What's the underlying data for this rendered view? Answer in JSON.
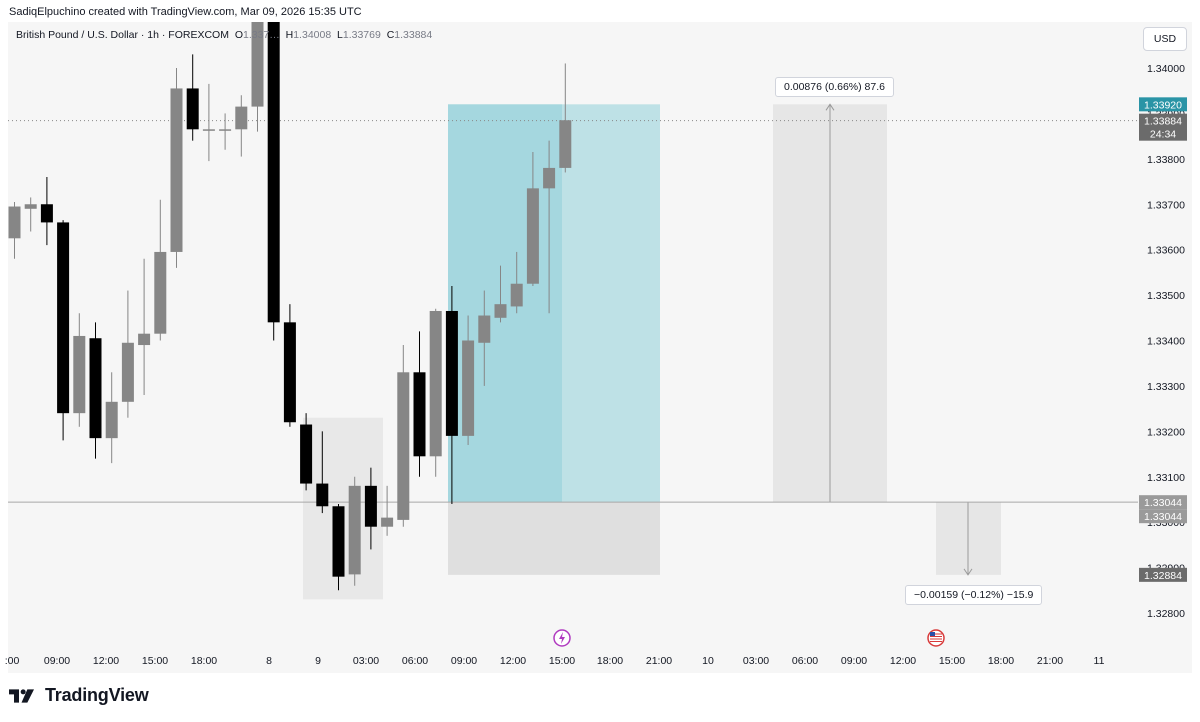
{
  "header": {
    "credit": "SadiqElpuchino created with TradingView.com, Mar 09, 2026 15:35 UTC"
  },
  "legend": {
    "symbol": "British Pound / U.S. Dollar · 1h · FOREXCOM",
    "open_label": "O",
    "open": "1.337…",
    "high_label": "H",
    "high": "1.34008",
    "low_label": "L",
    "low": "1.33769",
    "close_label": "C",
    "close": "1.33884"
  },
  "currency_button": "USD",
  "footer": {
    "logo_text": "TradingView"
  },
  "colors": {
    "bull": "#868686",
    "bear": "#000000",
    "target_zone": "#8fd0d8",
    "stop_zone": "#dadada",
    "last_price_badge": "#2a94a6",
    "grey_badge": "#6b6b6b"
  },
  "chart_data": {
    "type": "candlestick",
    "instrument": "British Pound / U.S. Dollar",
    "timeframe": "1h",
    "yticks": [
      "1.34000",
      "1.33900",
      "1.33800",
      "1.33700",
      "1.33600",
      "1.33500",
      "1.33400",
      "1.33300",
      "1.33200",
      "1.33100",
      "1.33000",
      "1.32900",
      "1.32800"
    ],
    "xticks": [
      ":00",
      "09:00",
      "12:00",
      "15:00",
      "18:00",
      "8",
      "9",
      "03:00",
      "06:00",
      "09:00",
      "12:00",
      "15:00",
      "18:00",
      "21:00",
      "10",
      "03:00",
      "06:00",
      "09:00",
      "12:00",
      "15:00",
      "18:00",
      "21:00",
      "11"
    ],
    "candles": [
      {
        "o": 1.33625,
        "h": 1.33705,
        "l": 1.3358,
        "c": 1.33695
      },
      {
        "o": 1.3369,
        "h": 1.33715,
        "l": 1.3364,
        "c": 1.337
      },
      {
        "o": 1.337,
        "h": 1.3376,
        "l": 1.3361,
        "c": 1.3366
      },
      {
        "o": 1.3366,
        "h": 1.33665,
        "l": 1.3318,
        "c": 1.3324
      },
      {
        "o": 1.3324,
        "h": 1.3346,
        "l": 1.3321,
        "c": 1.3341
      },
      {
        "o": 1.33405,
        "h": 1.3344,
        "l": 1.3314,
        "c": 1.33185
      },
      {
        "o": 1.33185,
        "h": 1.3333,
        "l": 1.3313,
        "c": 1.33265
      },
      {
        "o": 1.33265,
        "h": 1.3351,
        "l": 1.3323,
        "c": 1.33395
      },
      {
        "o": 1.3339,
        "h": 1.3358,
        "l": 1.3328,
        "c": 1.33415
      },
      {
        "o": 1.33415,
        "h": 1.3371,
        "l": 1.334,
        "c": 1.33595
      },
      {
        "o": 1.33595,
        "h": 1.34,
        "l": 1.3356,
        "c": 1.33955
      },
      {
        "o": 1.33955,
        "h": 1.3403,
        "l": 1.3384,
        "c": 1.33865
      },
      {
        "o": 1.33865,
        "h": 1.33965,
        "l": 1.33795,
        "c": 1.33865
      },
      {
        "o": 1.33865,
        "h": 1.339,
        "l": 1.3382,
        "c": 1.33865
      },
      {
        "o": 1.33865,
        "h": 1.3394,
        "l": 1.33805,
        "c": 1.33915
      },
      {
        "o": 1.33915,
        "h": 1.3415,
        "l": 1.3386,
        "c": 1.3412
      },
      {
        "o": 1.3412,
        "h": 1.3416,
        "l": 1.334,
        "c": 1.3344
      },
      {
        "o": 1.3344,
        "h": 1.3348,
        "l": 1.3321,
        "c": 1.3322
      },
      {
        "o": 1.33215,
        "h": 1.3324,
        "l": 1.3307,
        "c": 1.33085
      },
      {
        "o": 1.33085,
        "h": 1.332,
        "l": 1.3302,
        "c": 1.33035
      },
      {
        "o": 1.33035,
        "h": 1.3304,
        "l": 1.3285,
        "c": 1.3288
      },
      {
        "o": 1.32885,
        "h": 1.331,
        "l": 1.3286,
        "c": 1.3308
      },
      {
        "o": 1.3308,
        "h": 1.3312,
        "l": 1.3294,
        "c": 1.3299
      },
      {
        "o": 1.3299,
        "h": 1.3308,
        "l": 1.3297,
        "c": 1.3301
      },
      {
        "o": 1.33005,
        "h": 1.3339,
        "l": 1.3299,
        "c": 1.3333
      },
      {
        "o": 1.3333,
        "h": 1.3342,
        "l": 1.331,
        "c": 1.33145
      },
      {
        "o": 1.33145,
        "h": 1.3347,
        "l": 1.331,
        "c": 1.33465
      },
      {
        "o": 1.33465,
        "h": 1.3352,
        "l": 1.3304,
        "c": 1.3319
      },
      {
        "o": 1.3319,
        "h": 1.33455,
        "l": 1.3317,
        "c": 1.334
      },
      {
        "o": 1.33395,
        "h": 1.3351,
        "l": 1.333,
        "c": 1.33455
      },
      {
        "o": 1.3345,
        "h": 1.33565,
        "l": 1.3344,
        "c": 1.3348
      },
      {
        "o": 1.33475,
        "h": 1.33595,
        "l": 1.3346,
        "c": 1.33525
      },
      {
        "o": 1.33525,
        "h": 1.33815,
        "l": 1.3352,
        "c": 1.33735
      },
      {
        "o": 1.33735,
        "h": 1.3384,
        "l": 1.3346,
        "c": 1.3378
      },
      {
        "o": 1.3378,
        "h": 1.3401,
        "l": 1.3377,
        "c": 1.33885
      }
    ],
    "long_position": {
      "entry": 1.33044,
      "target": 1.3392,
      "stop": 1.32884
    },
    "measure_up": {
      "from": 1.33044,
      "to": 1.3392,
      "label": "0.00876 (0.66%) 87.6"
    },
    "measure_down": {
      "from": 1.33044,
      "to": 1.32884,
      "label": "−0.00159 (−0.12%) −15.9"
    },
    "price_badges": {
      "target": "1.33920",
      "last": "1.33884",
      "countdown": "24:34",
      "entry_a": "1.33044",
      "entry_b": "1.33044",
      "stop": "1.32884"
    }
  }
}
